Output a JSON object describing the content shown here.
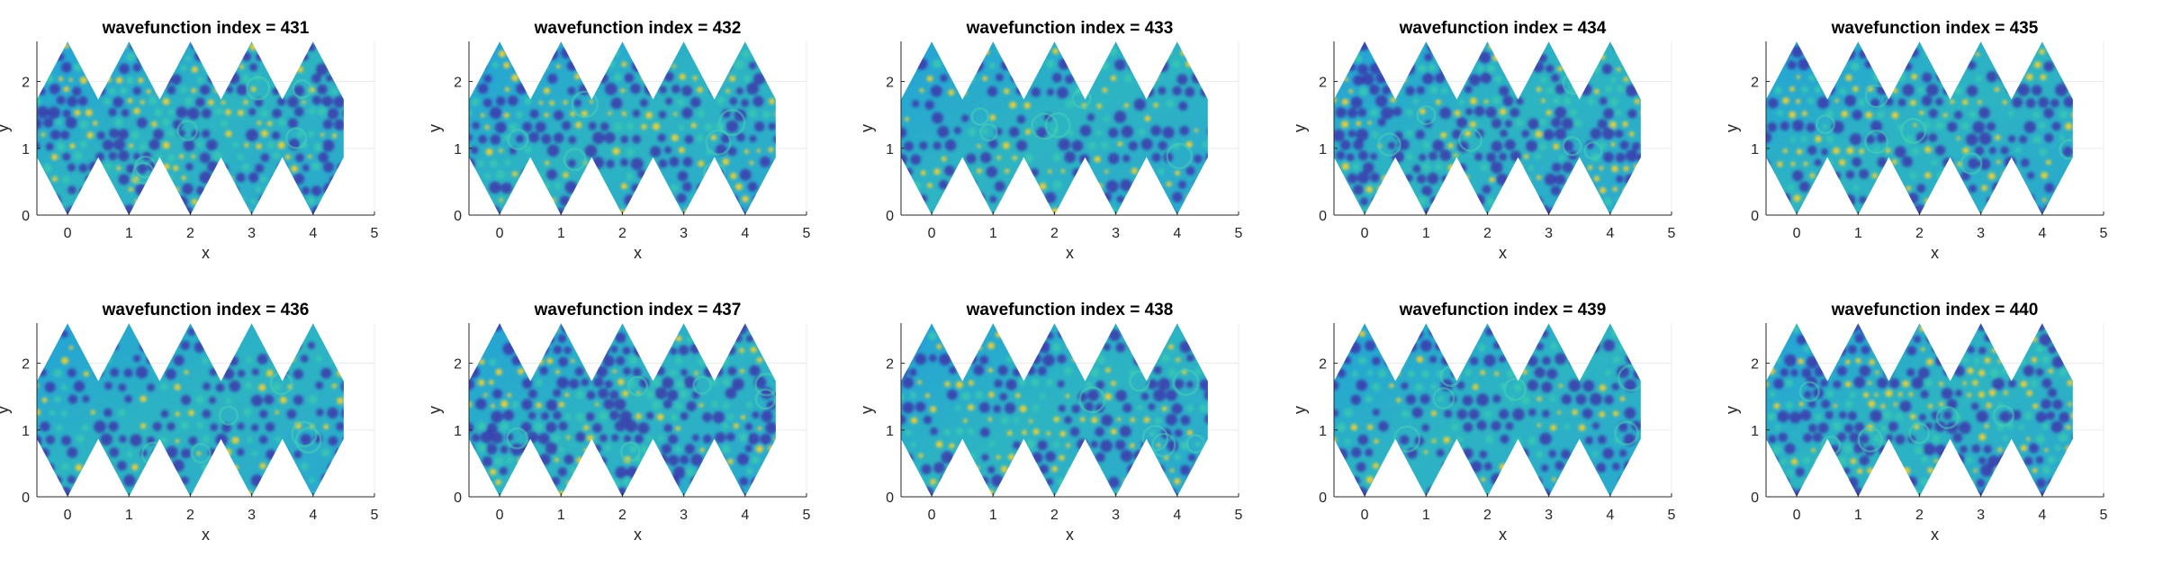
{
  "colors": {
    "background": "#ffffff",
    "axis": "#262626",
    "grid": "#ebebeb",
    "title": "#000000",
    "field_low": "#3e26a8",
    "field_mid": "#2db4c2",
    "field_high": "#f9d22e"
  },
  "chart_data": [
    {
      "type": "heatmap",
      "title": "wavefunction index = 431",
      "xlabel": "x",
      "ylabel": "y",
      "xlim": [
        -0.5,
        5
      ],
      "ylim": [
        0,
        2.6
      ],
      "xticks": [
        "0",
        "1",
        "2",
        "3",
        "4",
        "5"
      ],
      "yticks": [
        "0",
        "1",
        "2"
      ],
      "grid": true,
      "colormap": "parula"
    },
    {
      "type": "heatmap",
      "title": "wavefunction index = 432",
      "xlabel": "x",
      "ylabel": "y",
      "xlim": [
        -0.5,
        5
      ],
      "ylim": [
        0,
        2.6
      ],
      "xticks": [
        "0",
        "1",
        "2",
        "3",
        "4",
        "5"
      ],
      "yticks": [
        "0",
        "1",
        "2"
      ],
      "grid": true,
      "colormap": "parula"
    },
    {
      "type": "heatmap",
      "title": "wavefunction index = 433",
      "xlabel": "x",
      "ylabel": "y",
      "xlim": [
        -0.5,
        5
      ],
      "ylim": [
        0,
        2.6
      ],
      "xticks": [
        "0",
        "1",
        "2",
        "3",
        "4",
        "5"
      ],
      "yticks": [
        "0",
        "1",
        "2"
      ],
      "grid": true,
      "colormap": "parula"
    },
    {
      "type": "heatmap",
      "title": "wavefunction index = 434",
      "xlabel": "x",
      "ylabel": "y",
      "xlim": [
        -0.5,
        5
      ],
      "ylim": [
        0,
        2.6
      ],
      "xticks": [
        "0",
        "1",
        "2",
        "3",
        "4",
        "5"
      ],
      "yticks": [
        "0",
        "1",
        "2"
      ],
      "grid": true,
      "colormap": "parula"
    },
    {
      "type": "heatmap",
      "title": "wavefunction index = 435",
      "xlabel": "x",
      "ylabel": "y",
      "xlim": [
        -0.5,
        5
      ],
      "ylim": [
        0,
        2.6
      ],
      "xticks": [
        "0",
        "1",
        "2",
        "3",
        "4",
        "5"
      ],
      "yticks": [
        "0",
        "1",
        "2"
      ],
      "grid": true,
      "colormap": "parula"
    },
    {
      "type": "heatmap",
      "title": "wavefunction index = 436",
      "xlabel": "x",
      "ylabel": "y",
      "xlim": [
        -0.5,
        5
      ],
      "ylim": [
        0,
        2.6
      ],
      "xticks": [
        "0",
        "1",
        "2",
        "3",
        "4",
        "5"
      ],
      "yticks": [
        "0",
        "1",
        "2"
      ],
      "grid": true,
      "colormap": "parula"
    },
    {
      "type": "heatmap",
      "title": "wavefunction index = 437",
      "xlabel": "x",
      "ylabel": "y",
      "xlim": [
        -0.5,
        5
      ],
      "ylim": [
        0,
        2.6
      ],
      "xticks": [
        "0",
        "1",
        "2",
        "3",
        "4",
        "5"
      ],
      "yticks": [
        "0",
        "1",
        "2"
      ],
      "grid": true,
      "colormap": "parula"
    },
    {
      "type": "heatmap",
      "title": "wavefunction index = 438",
      "xlabel": "x",
      "ylabel": "y",
      "xlim": [
        -0.5,
        5
      ],
      "ylim": [
        0,
        2.6
      ],
      "xticks": [
        "0",
        "1",
        "2",
        "3",
        "4",
        "5"
      ],
      "yticks": [
        "0",
        "1",
        "2"
      ],
      "grid": true,
      "colormap": "parula"
    },
    {
      "type": "heatmap",
      "title": "wavefunction index = 439",
      "xlabel": "x",
      "ylabel": "y",
      "xlim": [
        -0.5,
        5
      ],
      "ylim": [
        0,
        2.6
      ],
      "xticks": [
        "0",
        "1",
        "2",
        "3",
        "4",
        "5"
      ],
      "yticks": [
        "0",
        "1",
        "2"
      ],
      "grid": true,
      "colormap": "parula"
    },
    {
      "type": "heatmap",
      "title": "wavefunction index = 440",
      "xlabel": "x",
      "ylabel": "y",
      "xlim": [
        -0.5,
        5
      ],
      "ylim": [
        0,
        2.6
      ],
      "xticks": [
        "0",
        "1",
        "2",
        "3",
        "4",
        "5"
      ],
      "yticks": [
        "0",
        "1",
        "2"
      ],
      "grid": true,
      "colormap": "parula"
    }
  ]
}
